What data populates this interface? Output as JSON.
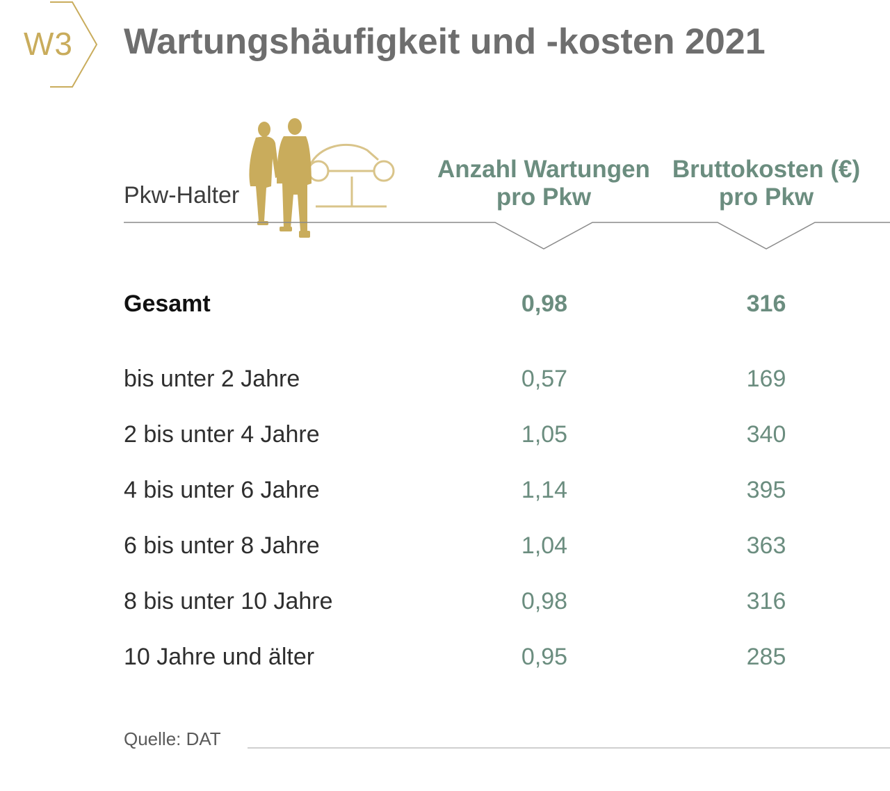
{
  "badge": {
    "label": "W3"
  },
  "title": "Wartungshäufigkeit und -kosten 2021",
  "colors": {
    "gold": "#c9ac5c",
    "green": "#6b8d7f",
    "title_gray": "#6e6e6e"
  },
  "chart_data": {
    "type": "table",
    "title": "Wartungshäufigkeit und -kosten 2021",
    "row_header": "Pkw-Halter",
    "columns": [
      {
        "line1": "Anzahl Wartungen",
        "line2": "pro Pkw"
      },
      {
        "line1": "Bruttokosten (€)",
        "line2": "pro Pkw"
      }
    ],
    "rows": [
      {
        "label": "Gesamt",
        "values": [
          "0,98",
          "316"
        ],
        "emphasis": true
      },
      {
        "label": "bis unter 2 Jahre",
        "values": [
          "0,57",
          "169"
        ]
      },
      {
        "label": "2 bis unter 4 Jahre",
        "values": [
          "1,05",
          "340"
        ]
      },
      {
        "label": "4 bis unter 6 Jahre",
        "values": [
          "1,14",
          "395"
        ]
      },
      {
        "label": "6 bis unter 8 Jahre",
        "values": [
          "1,04",
          "363"
        ]
      },
      {
        "label": "8 bis unter 10 Jahre",
        "values": [
          "0,98",
          "316"
        ]
      },
      {
        "label": "10 Jahre und älter",
        "values": [
          "0,95",
          "285"
        ]
      }
    ],
    "source": "Quelle: DAT"
  }
}
